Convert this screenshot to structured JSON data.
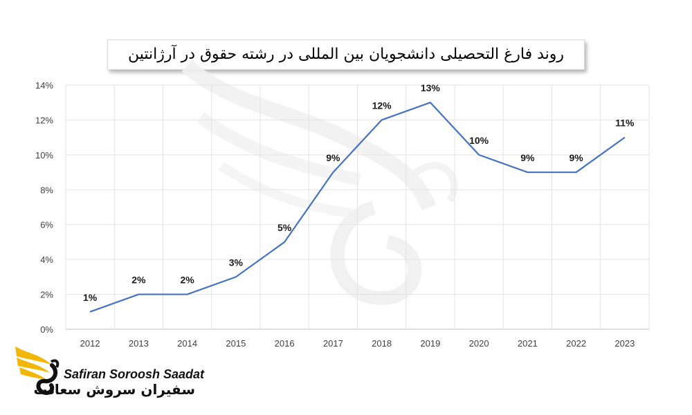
{
  "chart_data": {
    "type": "line",
    "title": "روند فارغ التحصیلی دانشجویان بین المللی در رشته حقوق در آرژانتین",
    "categories": [
      "2012",
      "2013",
      "2014",
      "2015",
      "2016",
      "2017",
      "2018",
      "2019",
      "2020",
      "2021",
      "2022",
      "2023"
    ],
    "values": [
      1,
      2,
      2,
      3,
      5,
      9,
      12,
      13,
      10,
      9,
      9,
      11
    ],
    "data_labels": [
      "1%",
      "2%",
      "2%",
      "3%",
      "5%",
      "9%",
      "12%",
      "13%",
      "10%",
      "9%",
      "9%",
      "11%"
    ],
    "y_ticks": [
      "0%",
      "2%",
      "4%",
      "6%",
      "8%",
      "10%",
      "12%",
      "14%"
    ],
    "ylim": [
      0,
      14
    ],
    "grid": true,
    "legend": "none",
    "line_color": "#4472c4"
  },
  "branding": {
    "name_en": "Safiran Soroosh Saadat",
    "name_fa": "سفیران سروش سعادت",
    "accent_color": "#f2b705"
  }
}
